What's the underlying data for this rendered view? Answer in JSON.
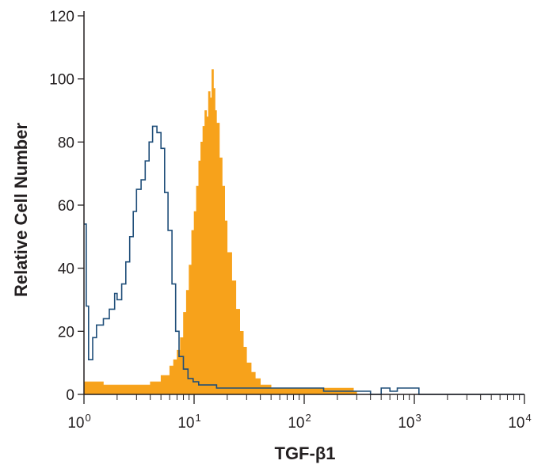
{
  "chart_data": {
    "type": "area",
    "x_scale": "log",
    "xlim": [
      1,
      10000
    ],
    "ylim": [
      0,
      120
    ],
    "xlabel": "TGF-β1",
    "ylabel": "Relative Cell Number",
    "x_ticks": [
      {
        "value": 1,
        "base": "10",
        "exp": "0"
      },
      {
        "value": 10,
        "base": "10",
        "exp": "1"
      },
      {
        "value": 100,
        "base": "10",
        "exp": "2"
      },
      {
        "value": 1000,
        "base": "10",
        "exp": "3"
      },
      {
        "value": 10000,
        "base": "10",
        "exp": "4"
      }
    ],
    "y_ticks": [
      0,
      20,
      40,
      60,
      80,
      100,
      120
    ],
    "grid": false,
    "series": [
      {
        "style": "outline",
        "color": "#1f4e79",
        "x": [
          1.0,
          1.05,
          1.1,
          1.2,
          1.3,
          1.5,
          1.7,
          1.9,
          2.0,
          2.2,
          2.4,
          2.6,
          2.8,
          3.0,
          3.3,
          3.6,
          3.9,
          4.2,
          4.6,
          5.0,
          5.4,
          5.8,
          6.3,
          6.8,
          7.3,
          8.0,
          8.8,
          9.8,
          11,
          13,
          16,
          20,
          30,
          50,
          80,
          150,
          250,
          400,
          500,
          600,
          700,
          800,
          900,
          1000,
          1100,
          2000,
          10000
        ],
        "y": [
          54,
          28,
          11,
          18,
          22,
          24,
          27,
          32,
          30,
          35,
          42,
          50,
          58,
          65,
          68,
          74,
          80,
          85,
          83,
          78,
          64,
          52,
          35,
          20,
          12,
          8,
          5,
          4,
          3,
          3,
          2,
          2,
          2,
          2,
          2,
          1,
          1,
          0,
          2,
          1,
          2,
          2,
          2,
          2,
          0,
          0,
          0
        ]
      },
      {
        "style": "filled",
        "color": "#f7a21b",
        "x": [
          1.0,
          1.5,
          2,
          3,
          4,
          5,
          6,
          6.5,
          7,
          7.5,
          8,
          8.5,
          9,
          9.5,
          10,
          10.5,
          11,
          11.5,
          12,
          12.5,
          13,
          13.5,
          14,
          14.5,
          15,
          15.5,
          16,
          17,
          18,
          19,
          20,
          22,
          24,
          26,
          28,
          30,
          33,
          36,
          40,
          50,
          80,
          150,
          250,
          280,
          300,
          10000
        ],
        "y": [
          4,
          3,
          3,
          3,
          4,
          6,
          9,
          11,
          14,
          18,
          26,
          33,
          41,
          52,
          58,
          66,
          74,
          80,
          85,
          90,
          88,
          96,
          94,
          103,
          97,
          90,
          86,
          75,
          66,
          55,
          45,
          36,
          27,
          20,
          15,
          10,
          7,
          5,
          3,
          2,
          2,
          2,
          2,
          1,
          0,
          0
        ]
      }
    ]
  }
}
